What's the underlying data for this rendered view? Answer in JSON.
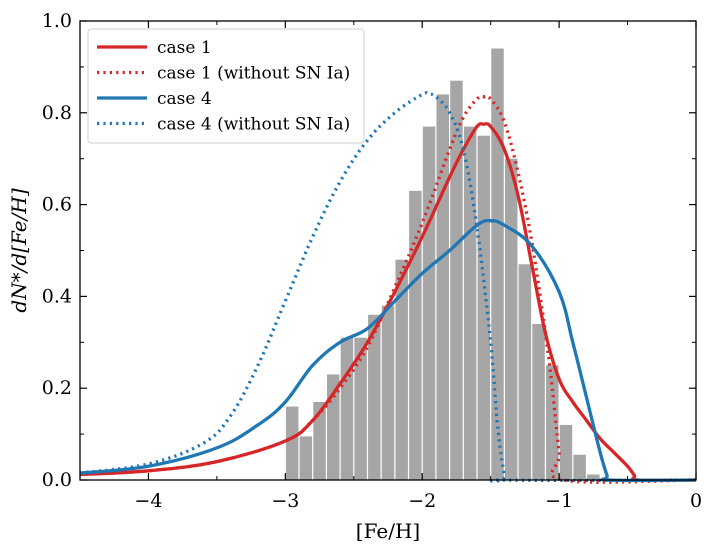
{
  "chart_data": {
    "type": "histogram+line",
    "xlabel": "[Fe/H]",
    "ylabel": "dN*/d[Fe/H]",
    "xlim": [
      -4.5,
      0
    ],
    "ylim": [
      0,
      1.0
    ],
    "xticks": [
      -4,
      -3,
      -2,
      -1,
      0
    ],
    "xtick_labels": [
      "−4",
      "−3",
      "−2",
      "−1",
      "0"
    ],
    "yticks": [
      0.0,
      0.2,
      0.4,
      0.6,
      0.8,
      1.0
    ],
    "ytick_labels": [
      "0.0",
      "0.2",
      "0.4",
      "0.6",
      "0.8",
      "1.0"
    ],
    "grid": false,
    "legend_placement": "top-left",
    "histogram": {
      "color": "#a6a6a6",
      "bin_width": 0.1,
      "bins": [
        {
          "x0": -3.0,
          "value": 0.16
        },
        {
          "x0": -2.9,
          "value": 0.095
        },
        {
          "x0": -2.8,
          "value": 0.17
        },
        {
          "x0": -2.7,
          "value": 0.23
        },
        {
          "x0": -2.6,
          "value": 0.31
        },
        {
          "x0": -2.5,
          "value": 0.31
        },
        {
          "x0": -2.4,
          "value": 0.36
        },
        {
          "x0": -2.3,
          "value": 0.38
        },
        {
          "x0": -2.2,
          "value": 0.48
        },
        {
          "x0": -2.1,
          "value": 0.63
        },
        {
          "x0": -2.0,
          "value": 0.77
        },
        {
          "x0": -1.9,
          "value": 0.84
        },
        {
          "x0": -1.8,
          "value": 0.87
        },
        {
          "x0": -1.7,
          "value": 0.77
        },
        {
          "x0": -1.6,
          "value": 0.75
        },
        {
          "x0": -1.5,
          "value": 0.94
        },
        {
          "x0": -1.4,
          "value": 0.7
        },
        {
          "x0": -1.3,
          "value": 0.47
        },
        {
          "x0": -1.2,
          "value": 0.34
        },
        {
          "x0": -1.1,
          "value": 0.25
        },
        {
          "x0": -1.0,
          "value": 0.12
        },
        {
          "x0": -0.9,
          "value": 0.055
        },
        {
          "x0": -0.8,
          "value": 0.012
        }
      ]
    },
    "series": [
      {
        "name": "case 1",
        "color": "#d62728",
        "style": "solid",
        "points": [
          [
            -4.5,
            0.012
          ],
          [
            -4.0,
            0.02
          ],
          [
            -3.5,
            0.04
          ],
          [
            -3.0,
            0.085
          ],
          [
            -2.8,
            0.13
          ],
          [
            -2.6,
            0.21
          ],
          [
            -2.4,
            0.3
          ],
          [
            -2.2,
            0.41
          ],
          [
            -2.0,
            0.53
          ],
          [
            -1.8,
            0.66
          ],
          [
            -1.7,
            0.72
          ],
          [
            -1.6,
            0.77
          ],
          [
            -1.55,
            0.775
          ],
          [
            -1.5,
            0.77
          ],
          [
            -1.4,
            0.72
          ],
          [
            -1.3,
            0.62
          ],
          [
            -1.2,
            0.47
          ],
          [
            -1.1,
            0.32
          ],
          [
            -1.0,
            0.22
          ],
          [
            -0.9,
            0.17
          ],
          [
            -0.8,
            0.13
          ],
          [
            -0.7,
            0.09
          ],
          [
            -0.6,
            0.06
          ],
          [
            -0.5,
            0.03
          ],
          [
            -0.45,
            0.01
          ],
          [
            -0.42,
            0.0
          ],
          [
            0.0,
            0.0
          ]
        ]
      },
      {
        "name": "case 1 (without SN Ia)",
        "color": "#d62728",
        "style": "dotted",
        "points": [
          [
            -4.5,
            0.012
          ],
          [
            -4.0,
            0.02
          ],
          [
            -3.5,
            0.04
          ],
          [
            -3.0,
            0.085
          ],
          [
            -2.8,
            0.13
          ],
          [
            -2.6,
            0.2
          ],
          [
            -2.4,
            0.29
          ],
          [
            -2.2,
            0.42
          ],
          [
            -2.0,
            0.56
          ],
          [
            -1.8,
            0.72
          ],
          [
            -1.7,
            0.79
          ],
          [
            -1.6,
            0.83
          ],
          [
            -1.55,
            0.835
          ],
          [
            -1.5,
            0.83
          ],
          [
            -1.4,
            0.78
          ],
          [
            -1.3,
            0.67
          ],
          [
            -1.2,
            0.52
          ],
          [
            -1.1,
            0.32
          ],
          [
            -1.05,
            0.2
          ],
          [
            -1.0,
            0.06
          ],
          [
            -0.97,
            0.0
          ],
          [
            0.0,
            0.0
          ]
        ]
      },
      {
        "name": "case 4",
        "color": "#1f77b4",
        "style": "solid",
        "points": [
          [
            -4.5,
            0.015
          ],
          [
            -4.0,
            0.03
          ],
          [
            -3.5,
            0.07
          ],
          [
            -3.2,
            0.12
          ],
          [
            -3.0,
            0.17
          ],
          [
            -2.8,
            0.25
          ],
          [
            -2.6,
            0.3
          ],
          [
            -2.4,
            0.33
          ],
          [
            -2.2,
            0.39
          ],
          [
            -2.0,
            0.45
          ],
          [
            -1.8,
            0.5
          ],
          [
            -1.6,
            0.555
          ],
          [
            -1.5,
            0.565
          ],
          [
            -1.4,
            0.555
          ],
          [
            -1.2,
            0.51
          ],
          [
            -1.0,
            0.41
          ],
          [
            -0.9,
            0.3
          ],
          [
            -0.8,
            0.18
          ],
          [
            -0.7,
            0.06
          ],
          [
            -0.65,
            0.01
          ],
          [
            -0.63,
            0.0
          ],
          [
            0.0,
            0.0
          ]
        ]
      },
      {
        "name": "case 4 (without SN Ia)",
        "color": "#1f77b4",
        "style": "dotted",
        "points": [
          [
            -4.5,
            0.015
          ],
          [
            -4.0,
            0.035
          ],
          [
            -3.6,
            0.08
          ],
          [
            -3.4,
            0.14
          ],
          [
            -3.2,
            0.25
          ],
          [
            -3.0,
            0.39
          ],
          [
            -2.8,
            0.53
          ],
          [
            -2.6,
            0.65
          ],
          [
            -2.4,
            0.74
          ],
          [
            -2.2,
            0.8
          ],
          [
            -2.0,
            0.84
          ],
          [
            -1.95,
            0.84
          ],
          [
            -1.9,
            0.835
          ],
          [
            -1.8,
            0.8
          ],
          [
            -1.7,
            0.72
          ],
          [
            -1.6,
            0.55
          ],
          [
            -1.5,
            0.3
          ],
          [
            -1.45,
            0.12
          ],
          [
            -1.4,
            0.01
          ],
          [
            -1.38,
            0.0
          ],
          [
            0.0,
            0.0
          ]
        ]
      }
    ]
  }
}
